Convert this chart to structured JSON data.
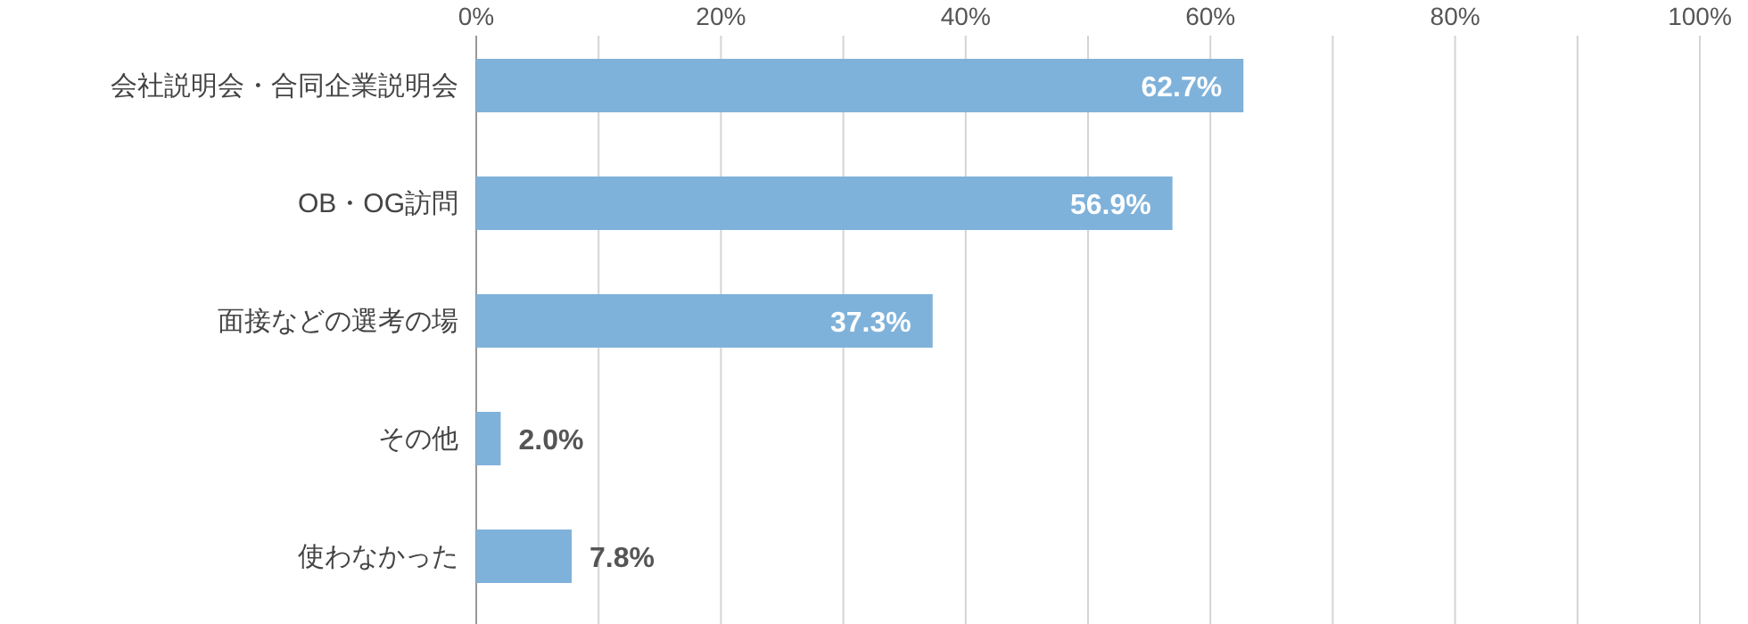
{
  "chart_data": {
    "type": "bar",
    "orientation": "horizontal",
    "categories": [
      "会社説明会・合同企業説明会",
      "OB・OG訪問",
      "面接などの選考の場",
      "その他",
      "使わなかった"
    ],
    "values": [
      62.7,
      56.9,
      37.3,
      2.0,
      7.8
    ],
    "value_labels": [
      "62.7%",
      "56.9%",
      "37.3%",
      "2.0%",
      "7.8%"
    ],
    "color": "#7fb2da",
    "xlim": [
      0,
      100
    ],
    "xticks": [
      {
        "value": 0,
        "label": "0%"
      },
      {
        "value": 10,
        "label": null
      },
      {
        "value": 20,
        "label": "20%"
      },
      {
        "value": 30,
        "label": null
      },
      {
        "value": 40,
        "label": "40%"
      },
      {
        "value": 50,
        "label": null
      },
      {
        "value": 60,
        "label": "60%"
      },
      {
        "value": 70,
        "label": null
      },
      {
        "value": 80,
        "label": "80%"
      },
      {
        "value": 90,
        "label": null
      },
      {
        "value": 100,
        "label": "100%"
      }
    ],
    "grid": "x"
  }
}
